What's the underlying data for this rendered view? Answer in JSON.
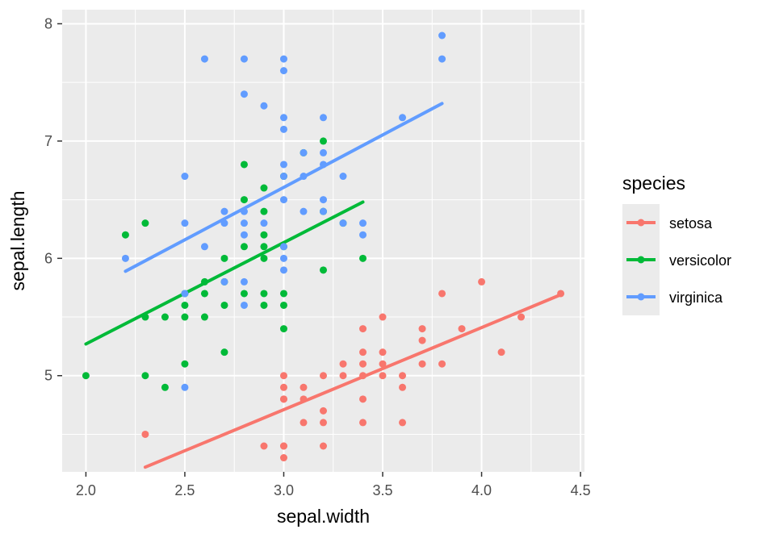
{
  "chart_data": {
    "type": "scatter",
    "title": "",
    "xlabel": "sepal.width",
    "ylabel": "sepal.length",
    "xlim": [
      1.88,
      4.52
    ],
    "ylim": [
      4.18,
      8.12
    ],
    "x_ticks": [
      2.0,
      2.5,
      3.0,
      3.5,
      4.0,
      4.5
    ],
    "x_tick_labels": [
      "2.0",
      "2.5",
      "3.0",
      "3.5",
      "4.0",
      "4.5"
    ],
    "y_ticks": [
      5,
      6,
      7,
      8
    ],
    "y_tick_labels": [
      "5",
      "6",
      "7",
      "8"
    ],
    "grid": true,
    "legend": {
      "title": "species",
      "position": "right"
    },
    "series": [
      {
        "name": "setosa",
        "color": "#F8766D",
        "fit": {
          "x": [
            2.3,
            4.4
          ],
          "y": [
            4.22,
            5.69
          ]
        },
        "points": [
          [
            2.3,
            4.5
          ],
          [
            2.9,
            4.4
          ],
          [
            3.0,
            4.4
          ],
          [
            3.0,
            4.3
          ],
          [
            3.0,
            4.4
          ],
          [
            3.0,
            4.8
          ],
          [
            3.0,
            4.9
          ],
          [
            3.0,
            5.0
          ],
          [
            3.0,
            4.8
          ],
          [
            3.1,
            4.9
          ],
          [
            3.1,
            4.8
          ],
          [
            3.1,
            4.6
          ],
          [
            3.2,
            4.4
          ],
          [
            3.2,
            4.6
          ],
          [
            3.2,
            4.7
          ],
          [
            3.2,
            5.0
          ],
          [
            3.3,
            5.0
          ],
          [
            3.3,
            5.1
          ],
          [
            3.4,
            4.6
          ],
          [
            3.4,
            4.8
          ],
          [
            3.4,
            5.0
          ],
          [
            3.4,
            5.1
          ],
          [
            3.4,
            5.2
          ],
          [
            3.4,
            5.4
          ],
          [
            3.5,
            5.0
          ],
          [
            3.5,
            5.1
          ],
          [
            3.5,
            5.2
          ],
          [
            3.5,
            5.5
          ],
          [
            3.6,
            4.6
          ],
          [
            3.6,
            4.9
          ],
          [
            3.6,
            5.0
          ],
          [
            3.7,
            5.1
          ],
          [
            3.7,
            5.3
          ],
          [
            3.7,
            5.4
          ],
          [
            3.8,
            5.1
          ],
          [
            3.8,
            5.7
          ],
          [
            3.9,
            5.4
          ],
          [
            4.0,
            5.8
          ],
          [
            4.1,
            5.2
          ],
          [
            4.2,
            5.5
          ],
          [
            4.4,
            5.7
          ]
        ]
      },
      {
        "name": "versicolor",
        "color": "#00BA38",
        "fit": {
          "x": [
            2.0,
            3.4
          ],
          "y": [
            5.27,
            6.48
          ]
        },
        "points": [
          [
            2.0,
            5.0
          ],
          [
            2.2,
            6.2
          ],
          [
            2.3,
            5.0
          ],
          [
            2.3,
            5.5
          ],
          [
            2.3,
            6.3
          ],
          [
            2.4,
            4.9
          ],
          [
            2.4,
            5.5
          ],
          [
            2.5,
            5.1
          ],
          [
            2.5,
            5.5
          ],
          [
            2.5,
            5.6
          ],
          [
            2.5,
            5.7
          ],
          [
            2.6,
            5.5
          ],
          [
            2.6,
            5.7
          ],
          [
            2.6,
            5.8
          ],
          [
            2.7,
            5.2
          ],
          [
            2.7,
            5.6
          ],
          [
            2.7,
            5.8
          ],
          [
            2.7,
            6.0
          ],
          [
            2.8,
            5.7
          ],
          [
            2.8,
            6.1
          ],
          [
            2.8,
            6.5
          ],
          [
            2.8,
            6.8
          ],
          [
            2.9,
            5.6
          ],
          [
            2.9,
            5.7
          ],
          [
            2.9,
            6.0
          ],
          [
            2.9,
            6.1
          ],
          [
            2.9,
            6.2
          ],
          [
            2.9,
            6.4
          ],
          [
            2.9,
            6.6
          ],
          [
            3.0,
            5.4
          ],
          [
            3.0,
            5.6
          ],
          [
            3.0,
            5.7
          ],
          [
            3.0,
            6.1
          ],
          [
            3.0,
            6.7
          ],
          [
            3.1,
            6.9
          ],
          [
            3.2,
            5.9
          ],
          [
            3.2,
            6.4
          ],
          [
            3.2,
            7.0
          ],
          [
            3.3,
            6.3
          ],
          [
            3.4,
            6.0
          ]
        ]
      },
      {
        "name": "virginica",
        "color": "#619CFF",
        "fit": {
          "x": [
            2.2,
            3.8
          ],
          "y": [
            5.89,
            7.32
          ]
        },
        "points": [
          [
            2.2,
            6.0
          ],
          [
            2.5,
            4.9
          ],
          [
            2.5,
            5.7
          ],
          [
            2.5,
            6.3
          ],
          [
            2.5,
            6.7
          ],
          [
            2.6,
            6.1
          ],
          [
            2.6,
            7.7
          ],
          [
            2.7,
            5.8
          ],
          [
            2.7,
            6.3
          ],
          [
            2.7,
            6.4
          ],
          [
            2.8,
            5.6
          ],
          [
            2.8,
            5.8
          ],
          [
            2.8,
            6.2
          ],
          [
            2.8,
            6.3
          ],
          [
            2.8,
            6.4
          ],
          [
            2.8,
            7.4
          ],
          [
            2.8,
            7.7
          ],
          [
            2.9,
            6.3
          ],
          [
            2.9,
            7.3
          ],
          [
            3.0,
            5.9
          ],
          [
            3.0,
            6.0
          ],
          [
            3.0,
            6.1
          ],
          [
            3.0,
            6.5
          ],
          [
            3.0,
            6.7
          ],
          [
            3.0,
            6.8
          ],
          [
            3.0,
            7.1
          ],
          [
            3.0,
            7.2
          ],
          [
            3.0,
            7.6
          ],
          [
            3.0,
            7.7
          ],
          [
            3.1,
            6.4
          ],
          [
            3.1,
            6.7
          ],
          [
            3.1,
            6.9
          ],
          [
            3.2,
            6.4
          ],
          [
            3.2,
            6.5
          ],
          [
            3.2,
            6.8
          ],
          [
            3.2,
            6.9
          ],
          [
            3.2,
            7.2
          ],
          [
            3.3,
            6.3
          ],
          [
            3.3,
            6.7
          ],
          [
            3.4,
            6.2
          ],
          [
            3.4,
            6.3
          ],
          [
            3.6,
            7.2
          ],
          [
            3.8,
            7.7
          ],
          [
            3.8,
            7.9
          ]
        ]
      }
    ]
  }
}
